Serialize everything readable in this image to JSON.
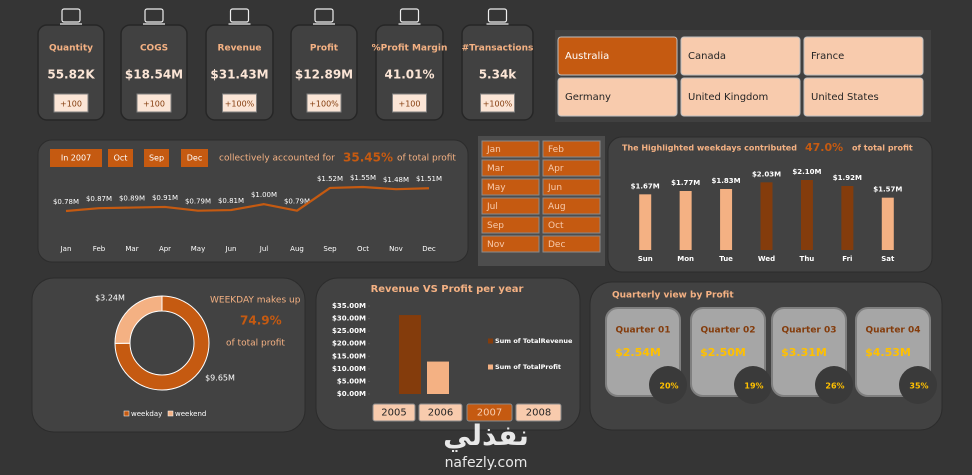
{
  "kpis": [
    {
      "label": "Quantity",
      "value": "55.82K",
      "change": "+100"
    },
    {
      "label": "COGS",
      "value": "$18.54M",
      "change": "+100"
    },
    {
      "label": "Revenue",
      "value": "$31.43M",
      "change": "+100%"
    },
    {
      "label": "Profit",
      "value": "$12.89M",
      "change": "+100%"
    },
    {
      "label": "%Profit Margin",
      "value": "41.01%",
      "change": "+100"
    },
    {
      "label": "#Transactions",
      "value": "5.34k",
      "change": "+100%"
    }
  ],
  "country_slicer": {
    "items": [
      {
        "label": "Australia",
        "selected": true
      },
      {
        "label": "Canada",
        "selected": false
      },
      {
        "label": "France",
        "selected": false
      },
      {
        "label": "Germany",
        "selected": false
      },
      {
        "label": "United Kingdom",
        "selected": false
      },
      {
        "label": "United States",
        "selected": false
      }
    ]
  },
  "month_slicer": {
    "items": [
      {
        "label": "Jan",
        "selected": true
      },
      {
        "label": "Feb",
        "selected": true
      },
      {
        "label": "Mar",
        "selected": true
      },
      {
        "label": "Apr",
        "selected": true
      },
      {
        "label": "May",
        "selected": true
      },
      {
        "label": "Jun",
        "selected": true
      },
      {
        "label": "Jul",
        "selected": true
      },
      {
        "label": "Aug",
        "selected": true
      },
      {
        "label": "Sep",
        "selected": true
      },
      {
        "label": "Oct",
        "selected": true
      },
      {
        "label": "Nov",
        "selected": true
      },
      {
        "label": "Dec",
        "selected": true
      }
    ]
  },
  "year_slicer": {
    "items": [
      {
        "label": "2005",
        "selected": false
      },
      {
        "label": "2006",
        "selected": false
      },
      {
        "label": "2007",
        "selected": true
      },
      {
        "label": "2008",
        "selected": false
      }
    ]
  },
  "quarterly": {
    "title": "Quarterly view by Profit",
    "cards": [
      {
        "label": "Quarter 01",
        "value": "$2.54M",
        "share": "20%"
      },
      {
        "label": "Quarter 02",
        "value": "$2.50M",
        "share": "19%"
      },
      {
        "label": "Quarter 03",
        "value": "$3.31M",
        "share": "26%"
      },
      {
        "label": "Quarter 04",
        "value": "$4.53M",
        "share": "35%"
      }
    ]
  },
  "watermark": {
    "logo": "نفذلي",
    "url": "nafezly.com"
  },
  "chart_data": [
    {
      "type": "line",
      "header_tags": [
        "In 2007",
        "Oct",
        "Sep",
        "Dec"
      ],
      "annotation_text": "collectively accounted for",
      "annotation_value": "35.45%",
      "annotation_suffix": "of total profit",
      "categories": [
        "Jan",
        "Feb",
        "Mar",
        "Apr",
        "May",
        "Jun",
        "Jul",
        "Aug",
        "Sep",
        "Oct",
        "Nov",
        "Dec"
      ],
      "values": [
        0.78,
        0.87,
        0.89,
        0.91,
        0.79,
        0.81,
        1.0,
        0.79,
        1.52,
        1.55,
        1.48,
        1.51
      ],
      "value_labels": [
        "$0.78M",
        "$0.87M",
        "$0.89M",
        "$0.91M",
        "$0.79M",
        "$0.81M",
        "$1.00M",
        "$0.79M",
        "$1.52M",
        "$1.55M",
        "$1.48M",
        "$1.51M"
      ],
      "color": "#c55a11"
    },
    {
      "type": "bar",
      "title": "The Highlighted weekdays contributed",
      "annotation_value": "47.0%",
      "annotation_suffix": "of total profit",
      "categories": [
        "Sun",
        "Mon",
        "Tue",
        "Wed",
        "Thu",
        "Fri",
        "Sat"
      ],
      "values": [
        1.67,
        1.77,
        1.83,
        2.03,
        2.1,
        1.92,
        1.57
      ],
      "value_labels": [
        "$1.67M",
        "$1.77M",
        "$1.83M",
        "$2.03M",
        "$2.10M",
        "$1.92M",
        "$1.57M"
      ],
      "colors": [
        "#f4b183",
        "#f4b183",
        "#f4b183",
        "#843c0c",
        "#843c0c",
        "#843c0c",
        "#f4b183"
      ]
    },
    {
      "type": "donut",
      "annotation_text": "WEEKDAY makes up",
      "annotation_value": "74.9%",
      "annotation_suffix": "of total profit",
      "categories": [
        "weekday",
        "weekend"
      ],
      "values": [
        9.65,
        3.24
      ],
      "value_labels": [
        "$9.65M",
        "$3.24M"
      ],
      "colors": [
        "#c55a11",
        "#f4b183"
      ],
      "legend": "bottom"
    },
    {
      "type": "bar",
      "title": "Revenue VS Profit per year",
      "categories": [
        null
      ],
      "series": [
        {
          "name": "Sum of TotalRevenue",
          "color": "#843c0c",
          "values": [
            31.4
          ]
        },
        {
          "name": "Sum of TotalProfit",
          "color": "#f4b183",
          "values": [
            12.9
          ]
        }
      ],
      "ylim": [
        0,
        35
      ],
      "yticks": [
        {
          "value": 0,
          "label": "$0.00M"
        },
        {
          "value": 5,
          "label": "$5.00M"
        },
        {
          "value": 10,
          "label": "$10.00M"
        },
        {
          "value": 15,
          "label": "$15.00M"
        },
        {
          "value": 20,
          "label": "$20.00M"
        },
        {
          "value": 25,
          "label": "$25.00M"
        },
        {
          "value": 30,
          "label": "$30.00M"
        },
        {
          "value": 35,
          "label": "$35.00M"
        }
      ],
      "legend": "right"
    }
  ]
}
